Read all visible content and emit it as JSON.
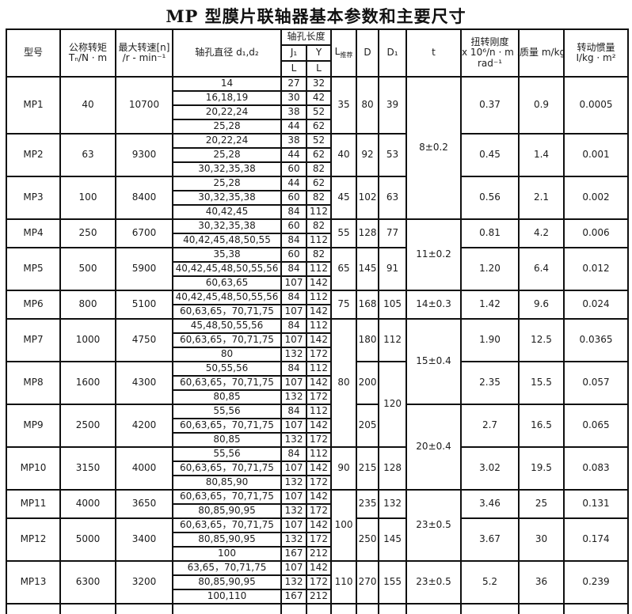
{
  "title": "MP 型膜片联轴器基本参数和主要尺寸",
  "table": {
    "headers": {
      "model": "型号",
      "torque_line1": "公称转矩",
      "torque_line2": "Tₙ/N · m",
      "speed_line1": "最大转速[n]",
      "speed_line2": "/r - min⁻¹",
      "bore_diameter": "轴孔直径 d₁,d₂",
      "bore_length_group": "轴孔长度",
      "j1": "J₁",
      "y": "Y",
      "l": "L",
      "l_recommended_main": "L",
      "l_recommended_sub": "推荐",
      "d": "D",
      "d1": "D₁",
      "t": "t",
      "stiffness_line1": "扭转刚度",
      "stiffness_line2": "x 10⁶/n · m .",
      "stiffness_line3": "rad⁻¹",
      "mass": "质量  m/kg",
      "inertia_line1": "转动惯量",
      "inertia_line2": "I/kg · m²"
    },
    "models": [
      {
        "name": "MP1",
        "torque": "40",
        "speed": "10700",
        "bores": [
          {
            "d": "14",
            "j1": "27",
            "y": "32"
          },
          {
            "d": "16,18,19",
            "j1": "30",
            "y": "42"
          },
          {
            "d": "20,22,24",
            "j1": "38",
            "y": "52"
          },
          {
            "d": "25,28",
            "j1": "44",
            "y": "62"
          }
        ],
        "l_rec": {
          "v": "35",
          "span": 4
        },
        "D": "80",
        "d1": {
          "v": "39",
          "span": 4
        },
        "t": {
          "v": "8±0.2",
          "span": 10
        },
        "stiffness": "0.37",
        "mass": "0.9",
        "inertia": "0.0005"
      },
      {
        "name": "MP2",
        "torque": "63",
        "speed": "9300",
        "bores": [
          {
            "d": "20,22,24",
            "j1": "38",
            "y": "52"
          },
          {
            "d": "25,28",
            "j1": "44",
            "y": "62"
          },
          {
            "d": "30,32,35,38",
            "j1": "60",
            "y": "82"
          }
        ],
        "l_rec": {
          "v": "40",
          "span": 3
        },
        "D": "92",
        "d1": {
          "v": "53",
          "span": 3
        },
        "t": null,
        "stiffness": "0.45",
        "mass": "1.4",
        "inertia": "0.001"
      },
      {
        "name": "MP3",
        "torque": "100",
        "speed": "8400",
        "bores": [
          {
            "d": "25,28",
            "j1": "44",
            "y": "62"
          },
          {
            "d": "30,32,35,38",
            "j1": "60",
            "y": "82"
          },
          {
            "d": "40,42,45",
            "j1": "84",
            "y": "112"
          }
        ],
        "l_rec": {
          "v": "45",
          "span": 3
        },
        "D": "102",
        "d1": {
          "v": "63",
          "span": 3
        },
        "t": null,
        "stiffness": "0.56",
        "mass": "2.1",
        "inertia": "0.002"
      },
      {
        "name": "MP4",
        "torque": "250",
        "speed": "6700",
        "bores": [
          {
            "d": "30,32,35,38",
            "j1": "60",
            "y": "82"
          },
          {
            "d": "40,42,45,48,50,55",
            "j1": "84",
            "y": "112"
          }
        ],
        "l_rec": {
          "v": "55",
          "span": 2
        },
        "D": "128",
        "d1": {
          "v": "77",
          "span": 2
        },
        "t": {
          "v": "11±0.2",
          "span": 5
        },
        "stiffness": "0.81",
        "mass": "4.2",
        "inertia": "0.006"
      },
      {
        "name": "MP5",
        "torque": "500",
        "speed": "5900",
        "bores": [
          {
            "d": "35,38",
            "j1": "60",
            "y": "82"
          },
          {
            "d": "40,42,45,48,50,55,56",
            "j1": "84",
            "y": "112"
          },
          {
            "d": "60,63,65",
            "j1": "107",
            "y": "142"
          }
        ],
        "l_rec": {
          "v": "65",
          "span": 3
        },
        "D": "145",
        "d1": {
          "v": "91",
          "span": 3
        },
        "t": null,
        "stiffness": "1.20",
        "mass": "6.4",
        "inertia": "0.012"
      },
      {
        "name": "MP6",
        "torque": "800",
        "speed": "5100",
        "bores": [
          {
            "d": "40,42,45,48,50,55,56",
            "j1": "84",
            "y": "112"
          },
          {
            "d": "60,63,65，70,71,75",
            "j1": "107",
            "y": "142"
          }
        ],
        "l_rec": {
          "v": "75",
          "span": 2
        },
        "D": "168",
        "d1": {
          "v": "105",
          "span": 2
        },
        "t": {
          "v": "14±0.3",
          "span": 2
        },
        "stiffness": "1.42",
        "mass": "9.6",
        "inertia": "0.024"
      },
      {
        "name": "MP7",
        "torque": "1000",
        "speed": "4750",
        "bores": [
          {
            "d": "45,48,50,55,56",
            "j1": "84",
            "y": "112"
          },
          {
            "d": "60,63,65，70,71,75",
            "j1": "107",
            "y": "142"
          },
          {
            "d": "80",
            "j1": "132",
            "y": "172"
          }
        ],
        "l_rec": {
          "v": "80",
          "span": 9
        },
        "D": "180",
        "d1": {
          "v": "112",
          "span": 3
        },
        "t": {
          "v": "15±0.4",
          "span": 6
        },
        "stiffness": "1.90",
        "mass": "12.5",
        "inertia": "0.0365"
      },
      {
        "name": "MP8",
        "torque": "1600",
        "speed": "4300",
        "bores": [
          {
            "d": "50,55,56",
            "j1": "84",
            "y": "112"
          },
          {
            "d": "60,63,65，70,71,75",
            "j1": "107",
            "y": "142"
          },
          {
            "d": "80,85",
            "j1": "132",
            "y": "172"
          }
        ],
        "l_rec": null,
        "D": "200",
        "d1": {
          "v": "120",
          "span": 6
        },
        "t": null,
        "stiffness": "2.35",
        "mass": "15.5",
        "inertia": "0.057"
      },
      {
        "name": "MP9",
        "torque": "2500",
        "speed": "4200",
        "bores": [
          {
            "d": "55,56",
            "j1": "84",
            "y": "112"
          },
          {
            "d": "60,63,65，70,71,75",
            "j1": "107",
            "y": "142"
          },
          {
            "d": "80,85",
            "j1": "132",
            "y": "172"
          }
        ],
        "l_rec": null,
        "D": "205",
        "d1": null,
        "t": {
          "v": "20±0.4",
          "span": 6
        },
        "stiffness": "2.7",
        "mass": "16.5",
        "inertia": "0.065"
      },
      {
        "name": "MP10",
        "torque": "3150",
        "speed": "4000",
        "bores": [
          {
            "d": "55,56",
            "j1": "84",
            "y": "112"
          },
          {
            "d": "60,63,65，70,71,75",
            "j1": "107",
            "y": "142"
          },
          {
            "d": "80,85,90",
            "j1": "132",
            "y": "172"
          }
        ],
        "l_rec": {
          "v": "90",
          "span": 3
        },
        "D": "215",
        "d1": {
          "v": "128",
          "span": 3
        },
        "t": null,
        "stiffness": "3.02",
        "mass": "19.5",
        "inertia": "0.083"
      },
      {
        "name": "MP11",
        "torque": "4000",
        "speed": "3650",
        "bores": [
          {
            "d": "60,63,65，70,71,75",
            "j1": "107",
            "y": "142"
          },
          {
            "d": "80,85,90,95",
            "j1": "132",
            "y": "172"
          }
        ],
        "l_rec": {
          "v": "100",
          "span": 5
        },
        "D": "235",
        "d1": {
          "v": "132",
          "span": 2
        },
        "t": {
          "v": "23±0.5",
          "span": 5
        },
        "stiffness": "3.46",
        "mass": "25",
        "inertia": "0.131"
      },
      {
        "name": "MP12",
        "torque": "5000",
        "speed": "3400",
        "bores": [
          {
            "d": "60,63,65，70,71,75",
            "j1": "107",
            "y": "142"
          },
          {
            "d": "80,85,90,95",
            "j1": "132",
            "y": "172"
          },
          {
            "d": "100",
            "j1": "167",
            "y": "212"
          }
        ],
        "l_rec": null,
        "D": "250",
        "d1": {
          "v": "145",
          "span": 3
        },
        "t": null,
        "stiffness": "3.67",
        "mass": "30",
        "inertia": "0.174"
      },
      {
        "name": "MP13",
        "torque": "6300",
        "speed": "3200",
        "bores": [
          {
            "d": "63,65，70,71,75",
            "j1": "107",
            "y": "142"
          },
          {
            "d": "80,85,90,95",
            "j1": "132",
            "y": "172"
          },
          {
            "d": "100,110",
            "j1": "167",
            "y": "212"
          }
        ],
        "l_rec": {
          "v": "110",
          "span": 3
        },
        "D": "270",
        "d1": {
          "v": "155",
          "span": 3
        },
        "t": {
          "v": "23±0.5",
          "span": 3
        },
        "stiffness": "5.2",
        "mass": "36",
        "inertia": "0.239"
      }
    ]
  }
}
